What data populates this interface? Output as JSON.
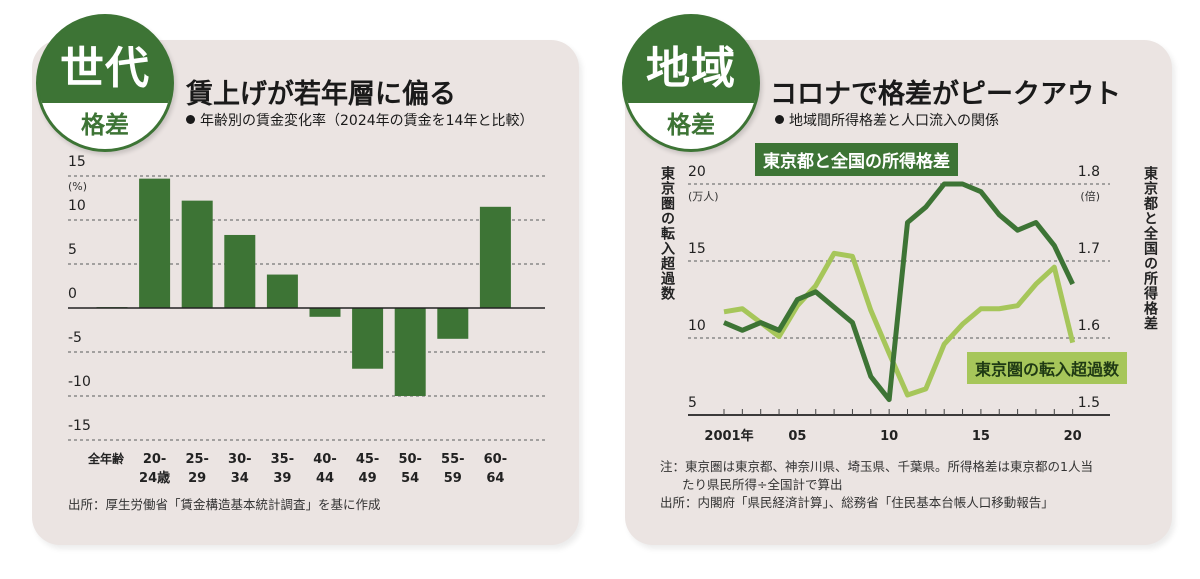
{
  "panel_left": {
    "badge": {
      "top": "世代",
      "bottom": "格差"
    },
    "title": "賃上げが若年層に偏る",
    "subtitle": "年齢別の賃金変化率（2024年の賃金を14年と比較）",
    "unit": "(%)",
    "source": "出所：厚生労働省「賃金構造基本統計調査」を基に作成",
    "y_ticks": [
      "15",
      "10",
      "5",
      "0",
      "-5",
      "-10",
      "-15"
    ],
    "x_labels": [
      [
        "全年齢",
        ""
      ],
      [
        "20-",
        "24歳"
      ],
      [
        "25-",
        "29"
      ],
      [
        "30-",
        "34"
      ],
      [
        "35-",
        "39"
      ],
      [
        "40-",
        "44"
      ],
      [
        "45-",
        "49"
      ],
      [
        "50-",
        "54"
      ],
      [
        "55-",
        "59"
      ],
      [
        "60-",
        "64"
      ]
    ]
  },
  "panel_right": {
    "badge": {
      "top": "地域",
      "bottom": "格差"
    },
    "title": "コロナで格差がピークアウト",
    "subtitle": "地域間所得格差と人口流入の関係",
    "left_axis_label": "東京圏の転入超過数",
    "right_axis_label": "東京都と全国の所得格差",
    "left_unit": "(万人)",
    "right_unit": "(倍)",
    "left_ticks": [
      "20",
      "15",
      "10",
      "5"
    ],
    "right_ticks": [
      "1.8",
      "1.7",
      "1.6",
      "1.5"
    ],
    "x_tick_labels": [
      "2001年",
      "05",
      "10",
      "15",
      "20"
    ],
    "series_label_dark": "東京都と全国の所得格差",
    "series_label_light": "東京圏の転入超過数",
    "note_line1": "注：東京圏は東京都、神奈川県、埼玉県、千葉県。所得格差は東京都の1人当",
    "note_line2": "たり県民所得÷全国計で算出",
    "source": "出所：内閣府「県民経済計算」、総務省「住民基本台帳人口移動報告」"
  },
  "colors": {
    "dark_green": "#3d7435",
    "light_green": "#a6c65a",
    "panel_bg": "#ebe4e2"
  },
  "chart_data": [
    {
      "type": "bar",
      "title": "賃上げが若年層に偏る",
      "subtitle": "年齢別の賃金変化率（2024年の賃金を14年と比較）",
      "xlabel": "",
      "ylabel": "(%)",
      "categories": [
        "全年齢",
        "20-24歳",
        "25-29",
        "30-34",
        "35-39",
        "40-44",
        "45-49",
        "50-54",
        "55-59",
        "60-64"
      ],
      "values": [
        0.1,
        14.7,
        12.2,
        8.3,
        3.8,
        -1.0,
        -6.9,
        -10.0,
        -3.5,
        11.5
      ],
      "ylim": [
        -15,
        15
      ],
      "yticks": [
        15,
        10,
        5,
        0,
        -5,
        -10,
        -15
      ],
      "grid": true,
      "color": "#3d7435"
    },
    {
      "type": "line",
      "title": "コロナで格差がピークアウト",
      "subtitle": "地域間所得格差と人口流入の関係",
      "x": [
        2001,
        2002,
        2003,
        2004,
        2005,
        2006,
        2007,
        2008,
        2009,
        2010,
        2011,
        2012,
        2013,
        2014,
        2015,
        2016,
        2017,
        2018,
        2019,
        2020
      ],
      "x_tick_labels": [
        "2001年",
        "05",
        "10",
        "15",
        "20"
      ],
      "series": [
        {
          "name": "東京都と全国の所得格差",
          "axis": "right",
          "unit": "倍",
          "color": "#3d7435",
          "values": [
            1.62,
            1.61,
            1.62,
            1.61,
            1.65,
            1.66,
            1.64,
            1.62,
            1.55,
            1.52,
            1.75,
            1.77,
            1.8,
            1.8,
            1.79,
            1.76,
            1.74,
            1.75,
            1.72,
            1.67
          ]
        },
        {
          "name": "東京圏の転入超過数",
          "axis": "left",
          "unit": "万人",
          "color": "#a6c65a",
          "values": [
            11.7,
            11.9,
            11.0,
            10.1,
            12.1,
            13.4,
            15.5,
            15.3,
            11.8,
            9.0,
            6.3,
            6.7,
            9.6,
            10.9,
            11.9,
            11.9,
            12.1,
            13.5,
            14.6,
            9.7
          ]
        }
      ],
      "ylabel_left": "東京圏の転入超過数 (万人)",
      "ylabel_right": "東京都と全国の所得格差 (倍)",
      "ylim_left": [
        5,
        20
      ],
      "ylim_right": [
        1.5,
        1.8
      ],
      "grid": true
    }
  ]
}
